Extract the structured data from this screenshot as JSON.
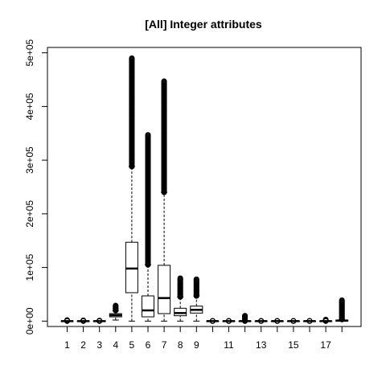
{
  "chart_data": {
    "type": "boxplot",
    "title": "[All] Integer attributes",
    "xlabel": "",
    "ylabel": "",
    "ylim": [
      -10000,
      510000
    ],
    "y_ticks": [
      0,
      100000,
      200000,
      300000,
      400000,
      500000
    ],
    "y_tick_labels": [
      "0e+00",
      "1e+05",
      "2e+05",
      "3e+05",
      "4e+05",
      "5e+05"
    ],
    "x_tick_labels": [
      "1",
      "2",
      "3",
      "4",
      "5",
      "6",
      "7",
      "8",
      "9",
      "11",
      "13",
      "15",
      "17"
    ],
    "x_tick_positions": [
      1,
      2,
      3,
      4,
      5,
      6,
      7,
      8,
      9,
      11,
      13,
      15,
      17
    ],
    "grid": false,
    "box_color": "#000000",
    "series": [
      {
        "x": 1,
        "min": 0,
        "q1": 0,
        "median": 0,
        "q3": 0,
        "max": 0,
        "outlier_min": 0,
        "outlier_max": 2000
      },
      {
        "x": 2,
        "min": 0,
        "q1": 0,
        "median": 0,
        "q3": 0,
        "max": 0,
        "outlier_min": 0,
        "outlier_max": 1500
      },
      {
        "x": 3,
        "min": 0,
        "q1": 0,
        "median": 0,
        "q3": 0,
        "max": 0,
        "outlier_min": 0,
        "outlier_max": 1000
      },
      {
        "x": 4,
        "min": 2000,
        "q1": 8000,
        "median": 11000,
        "q3": 14000,
        "max": 19000,
        "outlier_min": 20000,
        "outlier_max": 29000
      },
      {
        "x": 5,
        "min": 0,
        "q1": 53000,
        "median": 98000,
        "q3": 147000,
        "max": 288000,
        "outlier_min": 288000,
        "outlier_max": 490000
      },
      {
        "x": 6,
        "min": 0,
        "q1": 8000,
        "median": 20000,
        "q3": 47000,
        "max": 105000,
        "outlier_min": 105000,
        "outlier_max": 347000
      },
      {
        "x": 7,
        "min": 0,
        "q1": 14000,
        "median": 43000,
        "q3": 104000,
        "max": 240000,
        "outlier_min": 240000,
        "outlier_max": 447000
      },
      {
        "x": 8,
        "min": 0,
        "q1": 10000,
        "median": 15000,
        "q3": 24000,
        "max": 45000,
        "outlier_min": 45000,
        "outlier_max": 80000
      },
      {
        "x": 9,
        "min": 0,
        "q1": 15000,
        "median": 21000,
        "q3": 28000,
        "max": 47000,
        "outlier_min": 47000,
        "outlier_max": 78000
      },
      {
        "x": 10,
        "min": 0,
        "q1": 0,
        "median": 0,
        "q3": 0,
        "max": 0,
        "outlier_min": 0,
        "outlier_max": 500
      },
      {
        "x": 11,
        "min": 0,
        "q1": 0,
        "median": 0,
        "q3": 0,
        "max": 0,
        "outlier_min": 0,
        "outlier_max": 500
      },
      {
        "x": 12,
        "min": 0,
        "q1": 0,
        "median": 0,
        "q3": 0,
        "max": 0,
        "outlier_min": 0,
        "outlier_max": 10000
      },
      {
        "x": 13,
        "min": 0,
        "q1": 0,
        "median": 0,
        "q3": 0,
        "max": 0,
        "outlier_min": 0,
        "outlier_max": 500
      },
      {
        "x": 14,
        "min": 0,
        "q1": 0,
        "median": 0,
        "q3": 0,
        "max": 0,
        "outlier_min": 0,
        "outlier_max": 500
      },
      {
        "x": 15,
        "min": 0,
        "q1": 0,
        "median": 0,
        "q3": 0,
        "max": 0,
        "outlier_min": 0,
        "outlier_max": 500
      },
      {
        "x": 16,
        "min": 0,
        "q1": 0,
        "median": 0,
        "q3": 0,
        "max": 0,
        "outlier_min": 0,
        "outlier_max": 500
      },
      {
        "x": 17,
        "min": 0,
        "q1": 0,
        "median": 0,
        "q3": 0,
        "max": 0,
        "outlier_min": 0,
        "outlier_max": 3000
      },
      {
        "x": 18,
        "min": 0,
        "q1": 0,
        "median": 1000,
        "q3": 2000,
        "max": 3000,
        "outlier_min": 3000,
        "outlier_max": 39000
      }
    ]
  }
}
